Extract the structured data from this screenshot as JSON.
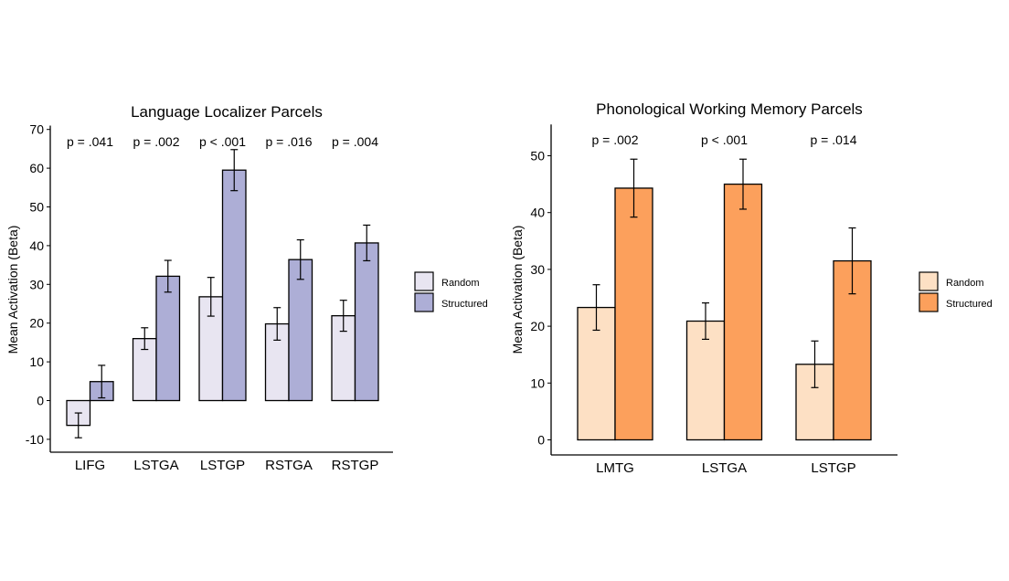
{
  "chart_data": [
    {
      "type": "bar",
      "title": "Language Localizer Parcels",
      "xlabel": "",
      "ylabel": "Mean Activation (Beta)",
      "categories": [
        "LIFG",
        "LSTGA",
        "LSTGP",
        "RSTGA",
        "RSTGP"
      ],
      "ylim": [
        -12,
        71
      ],
      "yticks": [
        -10,
        0,
        10,
        20,
        30,
        40,
        50,
        60,
        70
      ],
      "pvalues": [
        "p = .041",
        "p = .002",
        "p < .001",
        "p = .016",
        "p = .004"
      ],
      "series": [
        {
          "name": "Random",
          "color": "#e8e5f1",
          "values": [
            -6.4,
            16.0,
            26.8,
            19.8,
            21.9
          ],
          "errors": [
            3.2,
            2.8,
            5.0,
            4.2,
            4.0
          ]
        },
        {
          "name": "Structured",
          "color": "#adaed6",
          "values": [
            4.9,
            32.1,
            59.5,
            36.4,
            40.7
          ],
          "errors": [
            4.2,
            4.1,
            5.3,
            5.1,
            4.6
          ]
        }
      ],
      "legend": "right",
      "grid": false
    },
    {
      "type": "bar",
      "title": "Phonological Working Memory Parcels",
      "xlabel": "",
      "ylabel": "Mean Activation (Beta)",
      "categories": [
        "LMTG",
        "LSTGA",
        "LSTGP"
      ],
      "ylim": [
        -2,
        55.5
      ],
      "yticks": [
        0,
        10,
        20,
        30,
        40,
        50
      ],
      "pvalues": [
        "p = .002",
        "p < .001",
        "p = .014"
      ],
      "series": [
        {
          "name": "Random",
          "color": "#fde0c4",
          "values": [
            23.3,
            20.9,
            13.3
          ],
          "errors": [
            4.0,
            3.2,
            4.1
          ]
        },
        {
          "name": "Structured",
          "color": "#fca05c",
          "values": [
            44.3,
            45.0,
            31.5
          ],
          "errors": [
            5.1,
            4.4,
            5.8
          ]
        }
      ],
      "legend": "right",
      "grid": false
    }
  ]
}
